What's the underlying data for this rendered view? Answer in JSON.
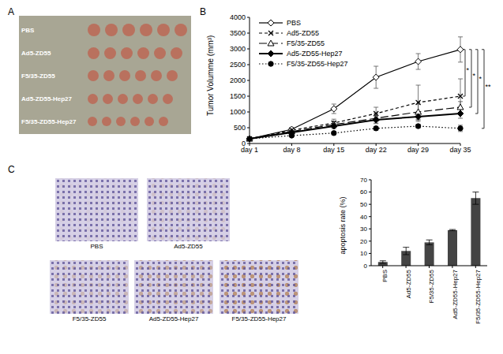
{
  "panels": [
    "A",
    "B",
    "C"
  ],
  "photo": {
    "row_labels": [
      "PBS",
      "Ad5-ZD55",
      "F5/35-ZD55",
      "Ad5-ZD55-Hep27",
      "F5/35-ZD55-Hep27"
    ]
  },
  "ihc": {
    "captions": [
      "PBS",
      "Ad5-ZD55",
      "F5/35-ZD55",
      "Ad5-ZD55-Hep27",
      "F5/35-ZD55-Hep27"
    ]
  },
  "chart_data": [
    {
      "type": "line",
      "y_label": "Tumor Volumme (mm³)",
      "categories": [
        "day 1",
        "day 8",
        "day 15",
        "day 22",
        "day 29",
        "day 35"
      ],
      "ylim": [
        0,
        4000
      ],
      "yticks": [
        0,
        500,
        1000,
        1500,
        2000,
        2500,
        3000,
        3500,
        4000
      ],
      "legend": "upper left",
      "series": [
        {
          "name": "PBS",
          "color": "#000000",
          "marker": "diamond_open",
          "line_style": "solid",
          "values": [
            150,
            450,
            1100,
            2100,
            2600,
            2980
          ],
          "errors": [
            20,
            60,
            150,
            350,
            250,
            400
          ]
        },
        {
          "name": "Ad5-ZD55",
          "color": "#000000",
          "marker": "x",
          "line_style": "dashed",
          "values": [
            150,
            420,
            650,
            950,
            1300,
            1500
          ],
          "errors": [
            20,
            50,
            120,
            200,
            550,
            550
          ]
        },
        {
          "name": "F5/35-ZD55",
          "color": "#000000",
          "marker": "triangle_open",
          "line_style": "longdash",
          "values": [
            150,
            380,
            600,
            800,
            1000,
            1150
          ],
          "errors": [
            20,
            50,
            100,
            150,
            250,
            180
          ]
        },
        {
          "name": "Ad5-ZD55-Hep27",
          "color": "#000000",
          "marker": "diamond",
          "line_style": "solid",
          "values": [
            150,
            350,
            550,
            750,
            850,
            950
          ],
          "errors": [
            20,
            40,
            80,
            120,
            150,
            150
          ]
        },
        {
          "name": "F5/35-ZD55-Hep27",
          "color": "#000000",
          "marker": "circle",
          "line_style": "dotted",
          "values": [
            150,
            250,
            330,
            480,
            550,
            480
          ],
          "errors": [
            15,
            30,
            50,
            60,
            60,
            100
          ]
        }
      ],
      "significance": [
        {
          "label": "*",
          "series": "Ad5-ZD55"
        },
        {
          "label": "*",
          "series": "F5/35-ZD55"
        },
        {
          "label": "*",
          "series": "Ad5-ZD55-Hep27"
        },
        {
          "label": "**",
          "series": "F5/35-ZD55-Hep27"
        }
      ]
    },
    {
      "type": "bar",
      "y_label": "apoptosis rate (%)",
      "categories": [
        "PBS",
        "Ad5-ZD55",
        "F5/35-ZD55",
        "Ad5-ZD55-Hep27",
        "F5/35-ZD55-Hep27"
      ],
      "values": [
        3,
        12,
        19,
        29,
        55
      ],
      "errors": [
        1,
        3,
        2,
        0.5,
        5
      ],
      "color": "#444444",
      "ylim": [
        0,
        70
      ],
      "yticks": [
        0,
        10,
        20,
        30,
        40,
        50,
        60,
        70
      ]
    }
  ]
}
